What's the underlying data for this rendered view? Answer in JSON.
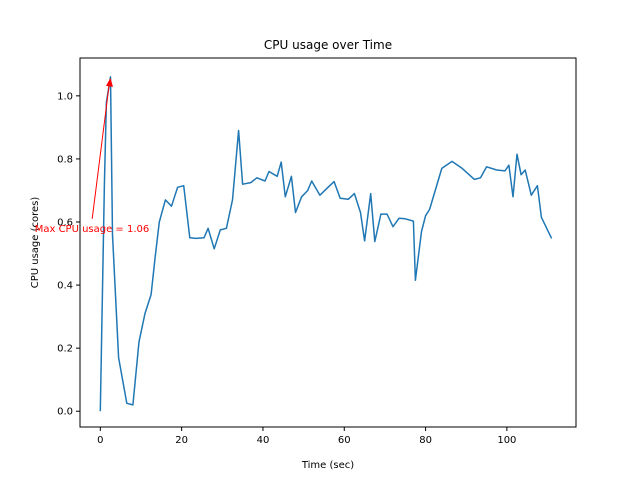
{
  "chart_data": {
    "type": "line",
    "title": "CPU usage over Time",
    "xlabel": "Time (sec)",
    "ylabel": "CPU usage (cores)",
    "xlim": [
      -5,
      117
    ],
    "ylim": [
      -0.05,
      1.12
    ],
    "xticks": [
      0,
      20,
      40,
      60,
      80,
      100
    ],
    "xtick_labels": [
      "0",
      "20",
      "40",
      "60",
      "80",
      "100"
    ],
    "yticks": [
      0.0,
      0.2,
      0.4,
      0.6,
      0.8,
      1.0
    ],
    "ytick_labels": [
      "0.0",
      "0.2",
      "0.4",
      "0.6",
      "0.8",
      "1.0"
    ],
    "grid": false,
    "series": [
      {
        "name": "CPU usage",
        "color": "#1f77b4",
        "x": [
          0,
          1,
          1.5,
          2.5,
          3,
          4.5,
          6.5,
          8,
          9.5,
          11,
          12.5,
          13.5,
          14.5,
          16,
          17.5,
          19,
          20.5,
          22,
          23.5,
          25.5,
          26.5,
          28,
          29.5,
          31,
          32.5,
          34,
          35,
          37,
          38.5,
          40.5,
          41.5,
          43.5,
          44.5,
          45.5,
          47,
          48,
          49.5,
          51,
          52,
          54,
          56,
          57.5,
          59,
          61,
          62.5,
          64,
          65,
          66.5,
          67.5,
          69,
          70.5,
          72,
          73.5,
          75,
          77,
          77.5,
          79,
          80,
          81,
          84,
          86.5,
          89,
          92,
          93.5,
          95,
          97.5,
          99.5,
          100.5,
          101.5,
          102.5,
          103.5,
          104.5,
          106,
          107.5,
          108.5,
          111
        ],
        "values": [
          0.0,
          0.72,
          0.98,
          1.06,
          0.56,
          0.17,
          0.025,
          0.02,
          0.22,
          0.31,
          0.37,
          0.49,
          0.6,
          0.67,
          0.65,
          0.71,
          0.715,
          0.55,
          0.548,
          0.55,
          0.58,
          0.515,
          0.575,
          0.58,
          0.67,
          0.89,
          0.72,
          0.725,
          0.74,
          0.73,
          0.76,
          0.745,
          0.79,
          0.68,
          0.745,
          0.63,
          0.68,
          0.7,
          0.73,
          0.685,
          0.71,
          0.728,
          0.675,
          0.672,
          0.69,
          0.63,
          0.54,
          0.69,
          0.538,
          0.625,
          0.625,
          0.585,
          0.612,
          0.61,
          0.603,
          0.415,
          0.57,
          0.62,
          0.64,
          0.77,
          0.792,
          0.77,
          0.735,
          0.74,
          0.775,
          0.765,
          0.762,
          0.78,
          0.68,
          0.815,
          0.75,
          0.765,
          0.685,
          0.715,
          0.615,
          0.548
        ]
      }
    ],
    "annotation": {
      "text": "Max CPU usage = 1.06",
      "color": "#ff0000",
      "point": [
        2.5,
        1.06
      ],
      "text_anchor_data": [
        -2,
        0.61
      ]
    }
  }
}
